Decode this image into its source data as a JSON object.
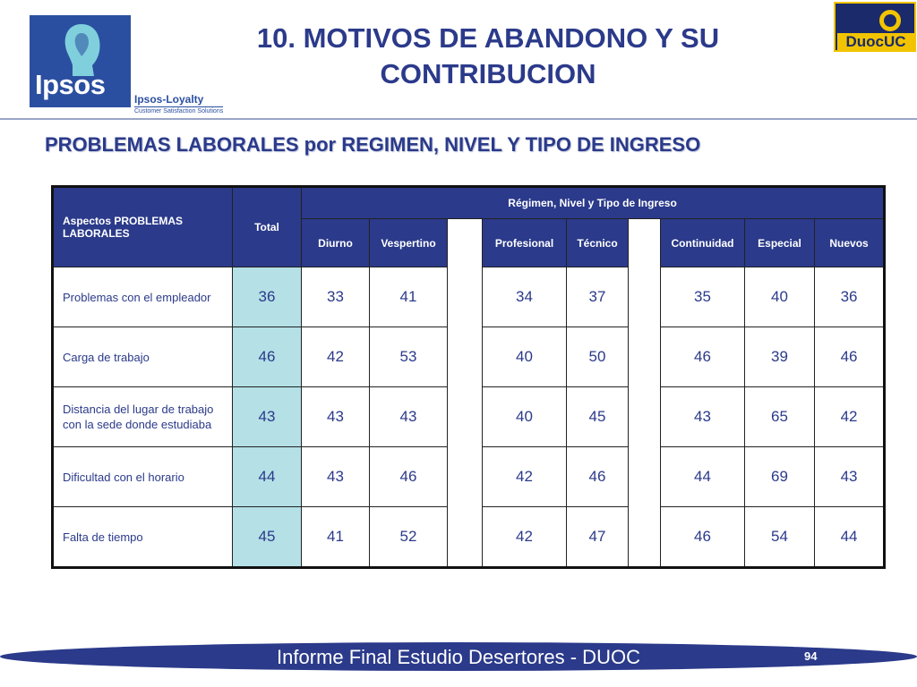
{
  "header": {
    "title_line1": "10. MOTIVOS DE ABANDONO Y SU",
    "title_line2": "CONTRIBUCION",
    "ipsos_logo_text": "Ipsos",
    "loyalty_text": "Ipsos-Loyalty",
    "loyalty_tagline": "Customer Satisfaction Solutions",
    "duoc_logo_text": "DuocUC"
  },
  "subtitle": "PROBLEMAS LABORALES por REGIMEN, NIVEL Y TIPO DE INGRESO",
  "table": {
    "aspect_header": "Aspectos PROBLEMAS LABORALES",
    "total_header": "Total",
    "group_header": "Régimen, Nivel y Tipo de Ingreso",
    "columns": [
      "Diurno",
      "Vespertino",
      "Profesional",
      "Técnico",
      "Continuidad",
      "Especial",
      "Nuevos"
    ],
    "rows": [
      {
        "label": "Problemas con el empleador",
        "total": "36",
        "values": [
          "33",
          "41",
          "34",
          "37",
          "35",
          "40",
          "36"
        ]
      },
      {
        "label": "Carga de trabajo",
        "total": "46",
        "values": [
          "42",
          "53",
          "40",
          "50",
          "46",
          "39",
          "46"
        ]
      },
      {
        "label": "Distancia del lugar de trabajo con la sede donde estudiaba",
        "total": "43",
        "values": [
          "43",
          "43",
          "40",
          "45",
          "43",
          "65",
          "42"
        ]
      },
      {
        "label": "Dificultad con el horario",
        "total": "44",
        "values": [
          "43",
          "46",
          "42",
          "46",
          "44",
          "69",
          "43"
        ]
      },
      {
        "label": "Falta de tiempo",
        "total": "45",
        "values": [
          "41",
          "52",
          "42",
          "47",
          "46",
          "54",
          "44"
        ]
      }
    ]
  },
  "footer": {
    "text": "Informe Final Estudio Desertores - DUOC",
    "page_number": "94"
  },
  "colors": {
    "primary_blue": "#2b3a8a",
    "total_cell": "#b4e0e6",
    "duoc_yellow": "#f2c400"
  }
}
